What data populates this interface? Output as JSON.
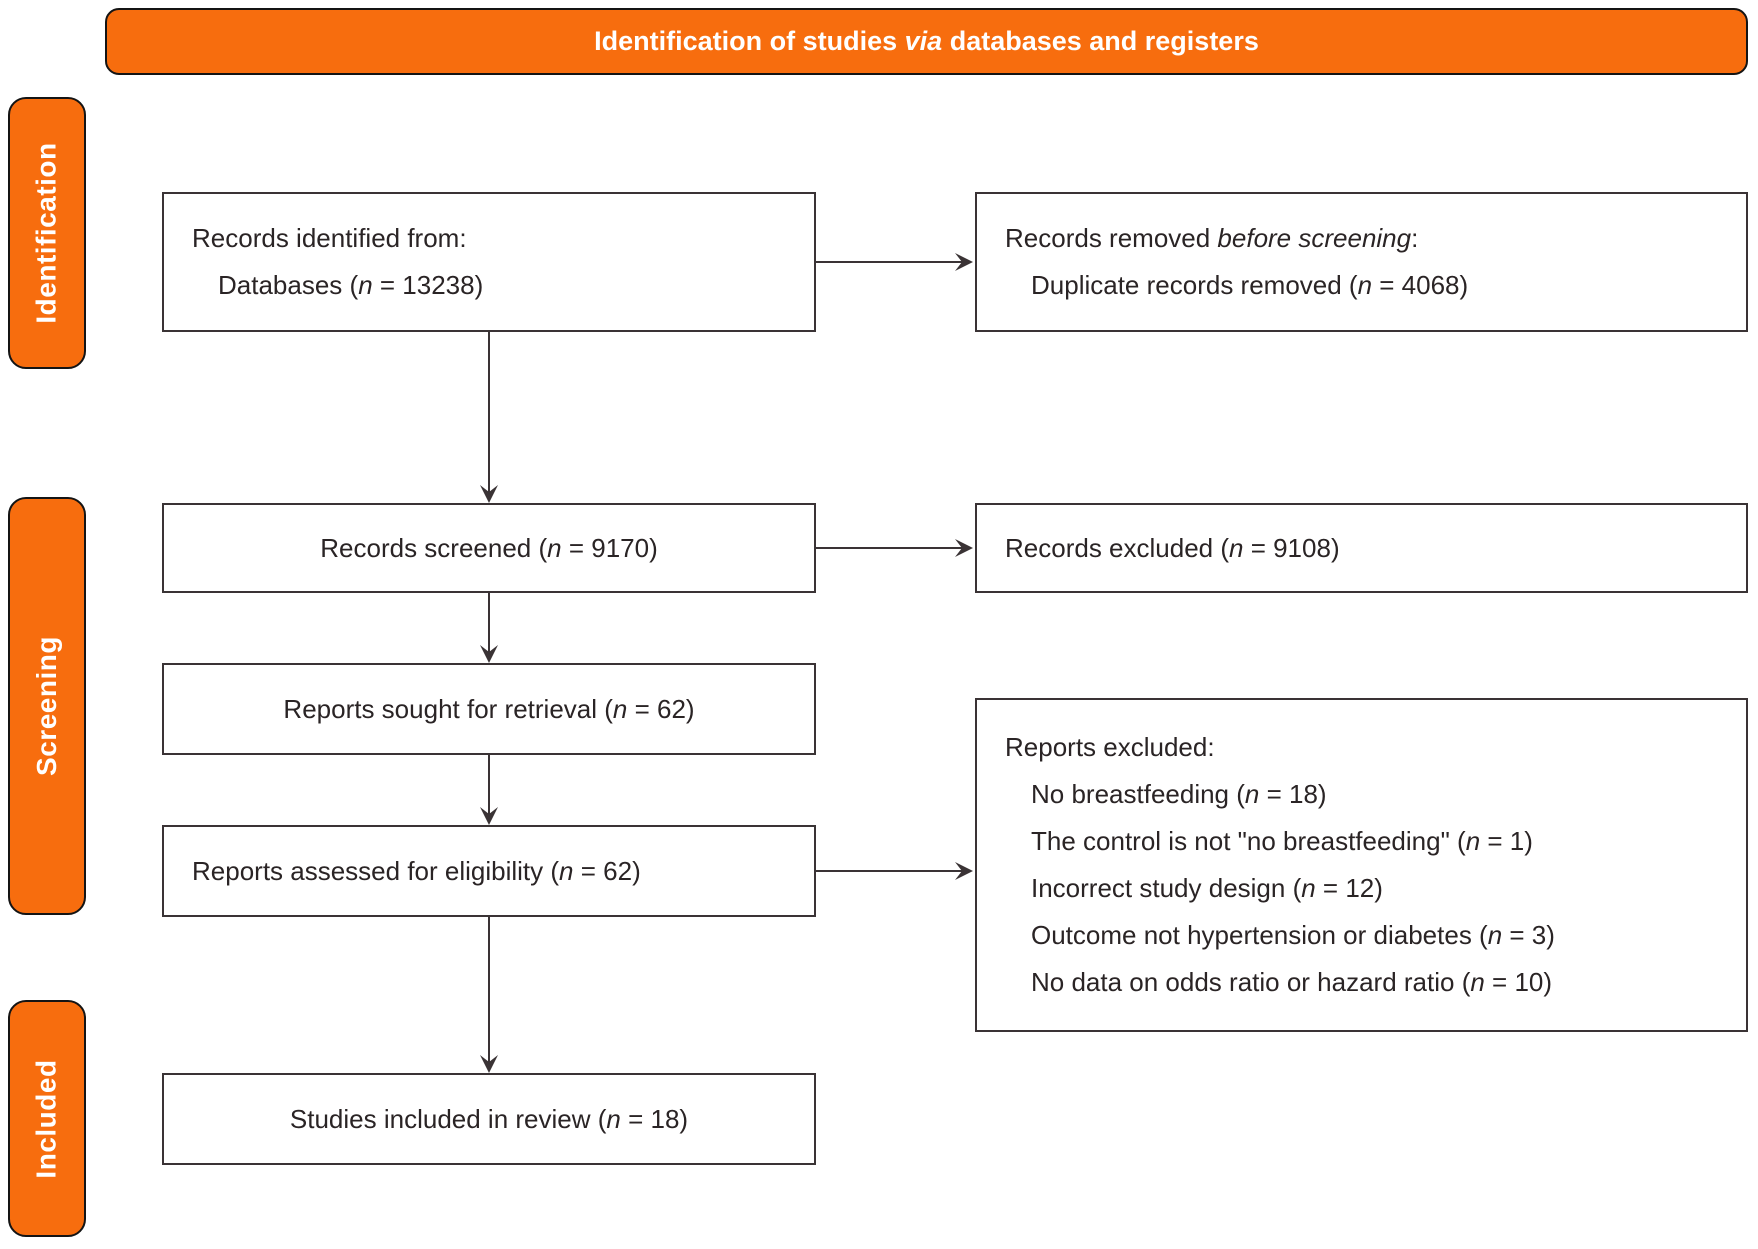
{
  "colors": {
    "accent_orange": "#f76d0e",
    "box_border": "#3a3335",
    "outline_black": "#141414",
    "text_dark": "#2a2425",
    "text_white": "#ffffff"
  },
  "header": {
    "pre": "Identification of studies ",
    "i": "via",
    "post": " databases and registers"
  },
  "sidebar": {
    "items": [
      {
        "label": "Identification"
      },
      {
        "label": "Screening"
      },
      {
        "label": "Included"
      }
    ]
  },
  "boxes": {
    "records_identified": {
      "lines": [
        {
          "pre": "Records identified from:"
        },
        {
          "pre": "Databases (",
          "i": "n",
          "post": " = 13238)",
          "indent": true
        }
      ]
    },
    "records_removed": {
      "lines": [
        {
          "pre": "Records removed ",
          "i": "before screening",
          "post": ":"
        },
        {
          "pre": "Duplicate records removed (",
          "i": "n",
          "post": " = 4068)",
          "indent": true
        }
      ]
    },
    "records_screened": {
      "lines": [
        {
          "pre": "Records screened (",
          "i": "n",
          "post": " = 9170)"
        }
      ]
    },
    "records_excluded": {
      "lines": [
        {
          "pre": "Records excluded (",
          "i": "n",
          "post": " = 9108)"
        }
      ]
    },
    "reports_sought": {
      "lines": [
        {
          "pre": "Reports sought for retrieval (",
          "i": "n",
          "post": " = 62)"
        }
      ]
    },
    "reports_assessed": {
      "lines": [
        {
          "pre": "Reports assessed for eligibility (",
          "i": "n",
          "post": " = 62)"
        }
      ]
    },
    "reports_excluded": {
      "lines": [
        {
          "pre": "Reports excluded:"
        },
        {
          "pre": "No breastfeeding (",
          "i": "n",
          "post": " = 18)",
          "indent": true
        },
        {
          "pre": "The control is not \"no breastfeeding\" (",
          "i": "n",
          "post": " = 1)",
          "indent": true
        },
        {
          "pre": "Incorrect study design (",
          "i": "n",
          "post": " = 12)",
          "indent": true
        },
        {
          "pre": "Outcome not hypertension or diabetes (",
          "i": "n",
          "post": " = 3)",
          "indent": true
        },
        {
          "pre": "No data on odds ratio or hazard ratio (",
          "i": "n",
          "post": " = 10)",
          "indent": true
        }
      ]
    },
    "studies_included": {
      "lines": [
        {
          "pre": "Studies included in review (",
          "i": "n",
          "post": " = 18)"
        }
      ]
    }
  }
}
